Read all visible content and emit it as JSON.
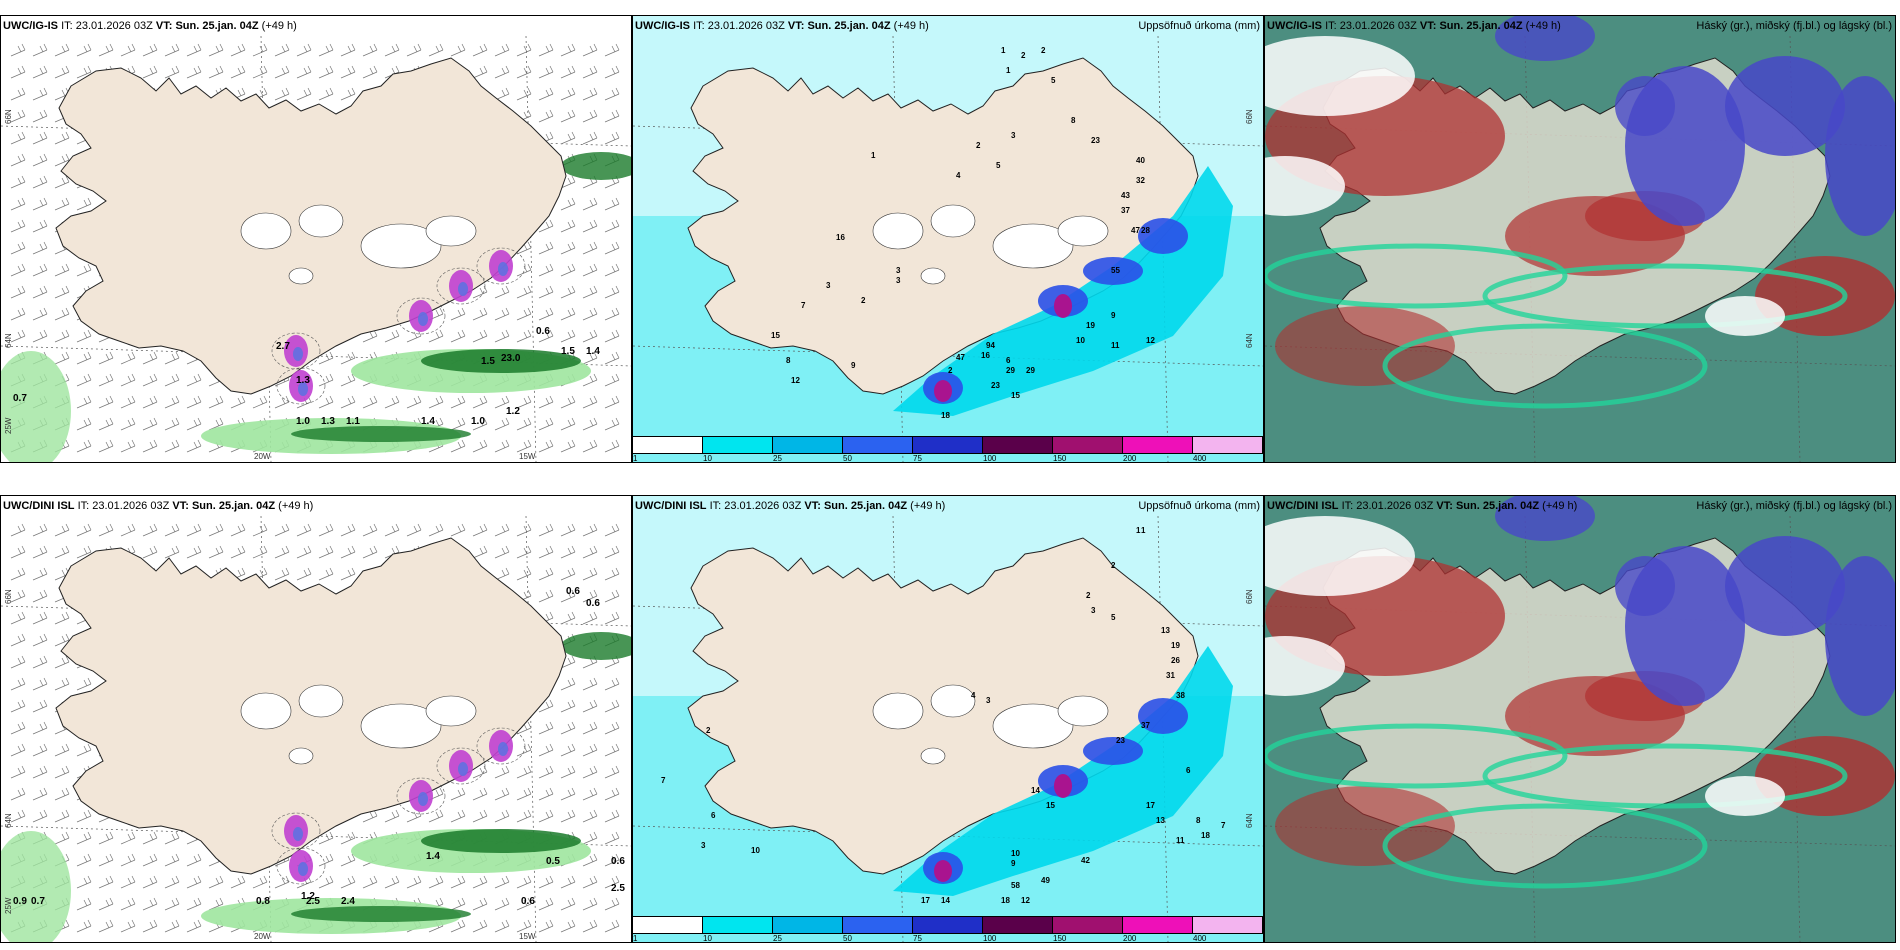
{
  "panels": [
    {
      "id": "ig-top-wind",
      "model": "UWC/IG-IS",
      "it_label": "IT:",
      "it_value": "23.01.2026 03Z",
      "vt_label": "VT:",
      "vt_value": "Sun. 25.jan. 04Z",
      "lead": "(+49 h)",
      "right_title": "",
      "lat_labels": [
        "66N",
        "64N",
        "25W"
      ],
      "lon_labels": [
        "20W",
        "15W"
      ],
      "values": [
        "2.7",
        "1.3",
        "0.6",
        "1.5",
        "23.0",
        "1.5",
        "1.4",
        "0.7",
        "1.0",
        "1.3",
        "1.1",
        "1.4",
        "1.0",
        "1.2"
      ]
    },
    {
      "id": "ig-top-precip",
      "model": "UWC/IG-IS",
      "it_label": "IT:",
      "it_value": "23.01.2026 03Z",
      "vt_label": "VT:",
      "vt_value": "Sun. 25.jan. 04Z",
      "lead": "(+49 h)",
      "right_title": "Uppsöfnuð úrkoma (mm)",
      "lat_labels": [
        "66N",
        "64N"
      ],
      "lon_labels": [],
      "values": [
        "1",
        "2",
        "2",
        "1",
        "5",
        "8",
        "3",
        "2",
        "4",
        "5",
        "23",
        "40",
        "32",
        "43",
        "37",
        "47",
        "28",
        "55",
        "19",
        "10",
        "11",
        "12",
        "9",
        "16",
        "23",
        "15",
        "29",
        "29",
        "18",
        "47",
        "94",
        "6",
        "2",
        "9",
        "8",
        "12",
        "15",
        "7",
        "3",
        "2",
        "3",
        "3",
        "1",
        "16"
      ],
      "colorbar": {
        "labels": [
          "1",
          "10",
          "25",
          "50",
          "75",
          "100",
          "150",
          "200",
          "400"
        ],
        "colors": [
          "#ffffff",
          "#00e5ef",
          "#00b6e6",
          "#2b62f0",
          "#1f2fc8",
          "#5a004a",
          "#a0106f",
          "#ee10b8",
          "#f3b4ef"
        ]
      }
    },
    {
      "id": "ig-top-cloud",
      "model": "UWC/IG-IS",
      "it_label": "IT:",
      "it_value": "23.01.2026 03Z",
      "vt_label": "VT:",
      "vt_value": "Sun. 25.jan. 04Z",
      "lead": "(+49 h)",
      "right_title": "Háský (gr.), miðský (fj.bl.) og lágský (bl.)",
      "lat_labels": [],
      "lon_labels": [],
      "values": []
    },
    {
      "id": "dini-bottom-wind",
      "model": "UWC/DINI ISL",
      "it_label": "IT:",
      "it_value": "23.01.2026 03Z",
      "vt_label": "VT:",
      "vt_value": "Sun. 25.jan. 04Z",
      "lead": "(+49 h)",
      "right_title": "",
      "lat_labels": [
        "66N",
        "64N",
        "25W"
      ],
      "lon_labels": [
        "20W",
        "15W"
      ],
      "values": [
        "0.6",
        "0.6",
        "0.5",
        "0.6",
        "2.5",
        "0.7",
        "0.9",
        "0.8",
        "2.5",
        "2.4",
        "0.6",
        "1.2",
        "1.4"
      ]
    },
    {
      "id": "dini-bottom-precip",
      "model": "UWC/DINI ISL",
      "it_label": "IT:",
      "it_value": "23.01.2026 03Z",
      "vt_label": "VT:",
      "vt_value": "Sun. 25.jan. 04Z",
      "lead": "(+49 h)",
      "right_title": "Uppsöfnuð úrkoma (mm)",
      "lat_labels": [
        "66N",
        "64N"
      ],
      "lon_labels": [],
      "values": [
        "1",
        "1",
        "2",
        "2",
        "3",
        "5",
        "13",
        "19",
        "26",
        "31",
        "38",
        "37",
        "23",
        "14",
        "15",
        "17",
        "13",
        "42",
        "49",
        "58",
        "12",
        "18",
        "17",
        "14",
        "10",
        "9",
        "8",
        "7",
        "11",
        "18",
        "6",
        "4",
        "3",
        "2",
        "7",
        "6",
        "10",
        "3"
      ],
      "colorbar": {
        "labels": [
          "1",
          "10",
          "25",
          "50",
          "75",
          "100",
          "150",
          "200",
          "400"
        ],
        "colors": [
          "#ffffff",
          "#00e5ef",
          "#00b6e6",
          "#2b62f0",
          "#1f2fc8",
          "#5a004a",
          "#a0106f",
          "#ee10b8",
          "#f3b4ef"
        ]
      }
    },
    {
      "id": "dini-bottom-cloud",
      "model": "UWC/DINI ISL",
      "it_label": "IT:",
      "it_value": "23.01.2026 03Z",
      "vt_label": "VT:",
      "vt_value": "Sun. 25.jan. 04Z",
      "lead": "(+49 h)",
      "right_title": "Háský (gr.), miðský (fj.bl.) og lágský (bl.)",
      "lat_labels": [],
      "lon_labels": [],
      "values": []
    }
  ],
  "colors": {
    "land": "#f2e6d8",
    "coast": "#222222",
    "precip_light": "#7ff0f5",
    "precip_mid": "#00d8ec",
    "precip_heavy": "#2a50e8",
    "precip_extreme": "#b0108a",
    "wind_green": "#9fe59f",
    "wind_dark": "#1a7a2a",
    "cloud_high": "#2d7a6a",
    "cloud_mid": "#b03030",
    "cloud_low": "#4848c8",
    "cloud_edge": "#22d49a"
  }
}
